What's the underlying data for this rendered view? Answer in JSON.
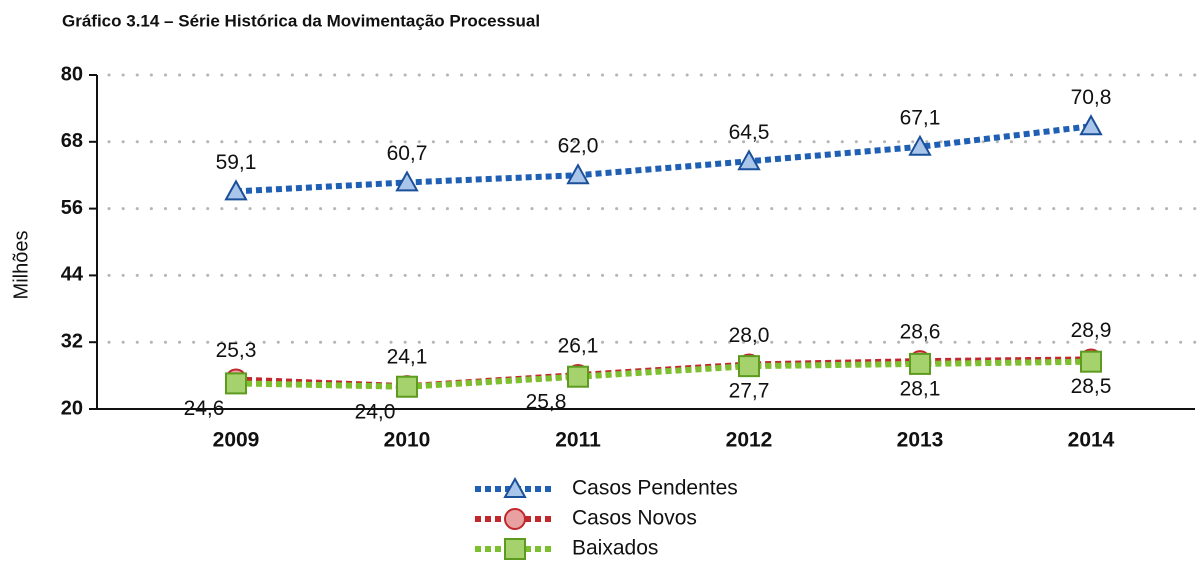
{
  "chart_data": {
    "type": "line",
    "title": "Gráfico 3.14 – Série Histórica da Movimentação Processual",
    "ylabel": "Milhões",
    "categories": [
      "2009",
      "2010",
      "2011",
      "2012",
      "2013",
      "2014"
    ],
    "series": [
      {
        "name": "Casos Pendentes",
        "color": "#1f5fb4",
        "marker": "triangle",
        "values": [
          59.1,
          60.7,
          62.0,
          64.5,
          67.1,
          70.8
        ],
        "value_labels": [
          "59,1",
          "60,7",
          "62,0",
          "64,5",
          "67,1",
          "70,8"
        ]
      },
      {
        "name": "Casos Novos",
        "color": "#c0282d",
        "marker": "circle",
        "values": [
          25.3,
          24.1,
          26.1,
          28.0,
          28.6,
          28.9
        ],
        "value_labels": [
          "25,3",
          "24,1",
          "26,1",
          "28,0",
          "28,6",
          "28,9"
        ]
      },
      {
        "name": "Baixados",
        "color": "#7cbf2f",
        "marker": "square",
        "values": [
          24.6,
          24.0,
          25.8,
          27.7,
          28.1,
          28.5
        ],
        "value_labels": [
          "24,6",
          "24,0",
          "25,8",
          "27,7",
          "28,1",
          "28,5"
        ]
      }
    ],
    "ylim": [
      20,
      80
    ],
    "yticks": [
      20,
      32,
      44,
      56,
      68,
      80
    ],
    "grid": true
  }
}
